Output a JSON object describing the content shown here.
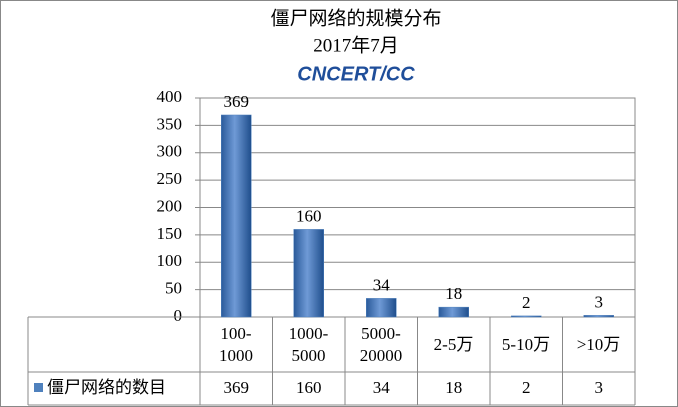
{
  "chart_data": {
    "type": "bar",
    "title": "僵尸网络的规模分布",
    "subtitle": "2017年7月",
    "logo": "CNCERT/CC",
    "categories": [
      "100-1000",
      "1000-5000",
      "5000-20000",
      "2-5万",
      "5-10万",
      ">10万"
    ],
    "series": [
      {
        "name": "僵尸网络的数目",
        "color": "#4f81bd",
        "values": [
          369,
          160,
          34,
          18,
          2,
          3
        ]
      }
    ],
    "ylim": [
      0,
      400
    ],
    "yticks": [
      0,
      50,
      100,
      150,
      200,
      250,
      300,
      350,
      400
    ],
    "grid": true,
    "data_table": true
  }
}
